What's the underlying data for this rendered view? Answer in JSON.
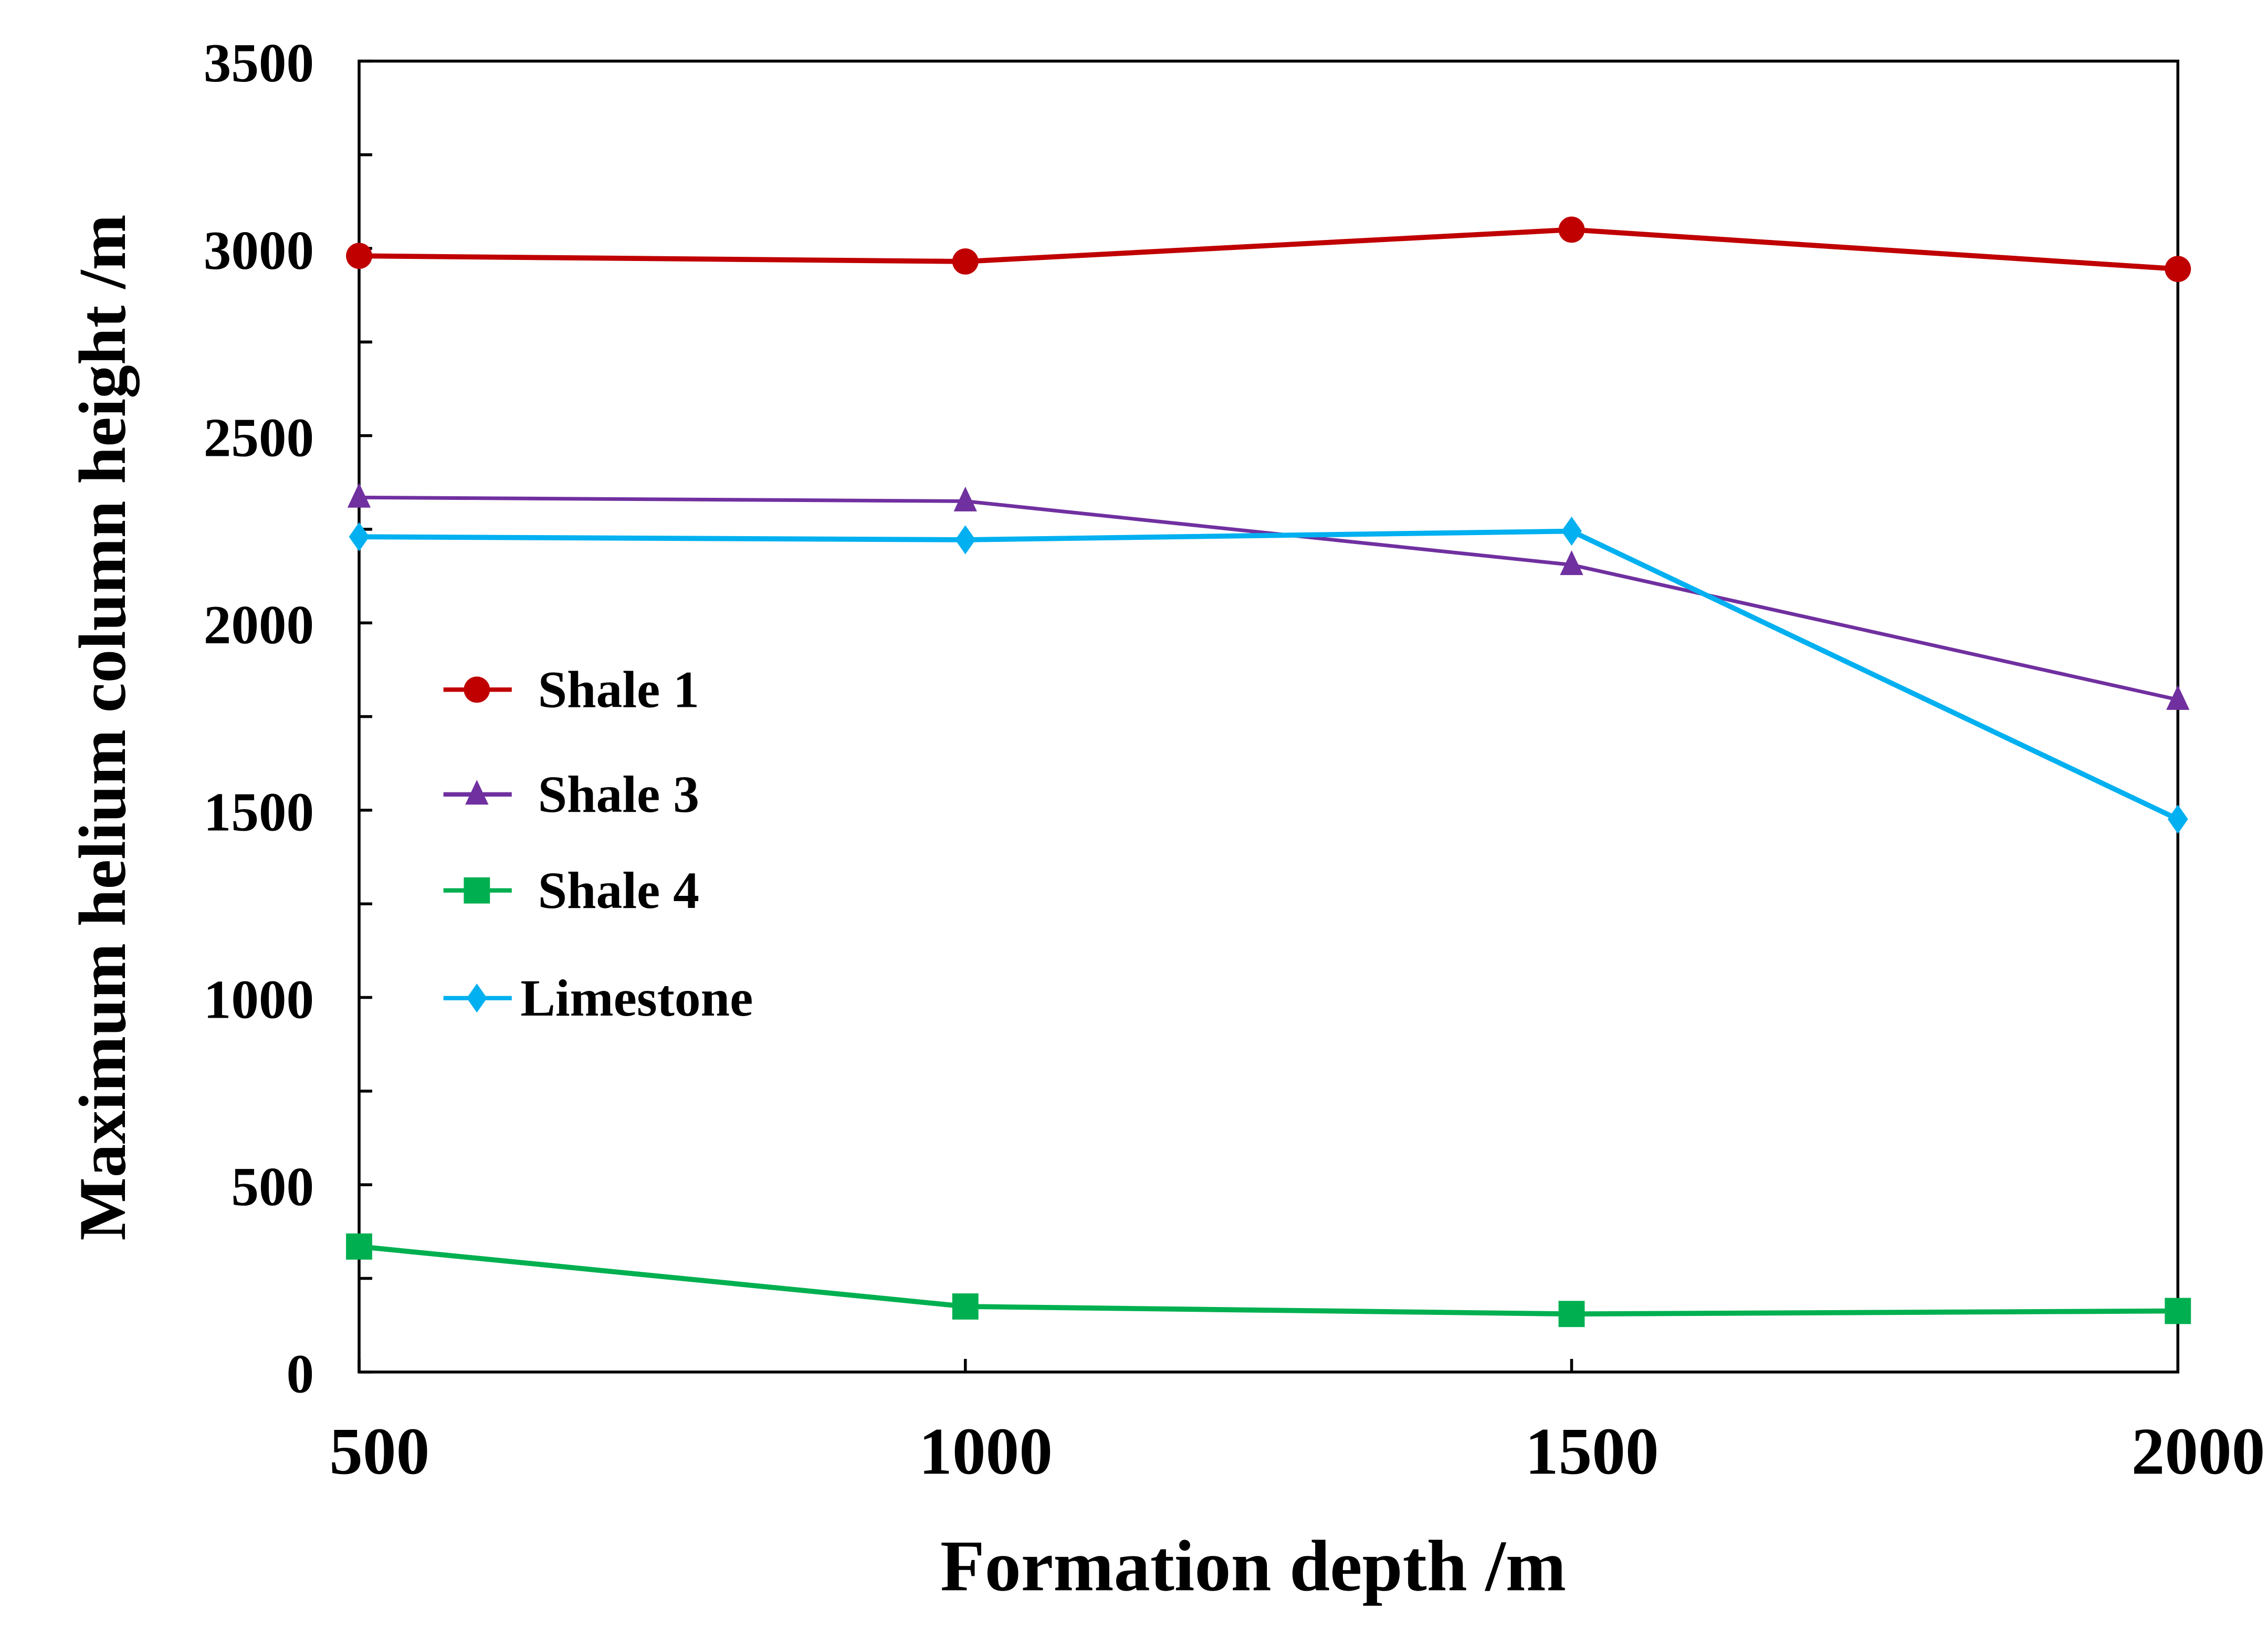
{
  "chart_data": {
    "type": "line",
    "title": "",
    "xlabel": "Formation depth  /m",
    "ylabel": "Maximum helium column height  /m",
    "x": [
      500,
      1000,
      1500,
      2000
    ],
    "xlim": [
      500,
      2000
    ],
    "ylim": [
      0,
      3500
    ],
    "xticks": [
      "500",
      "1000",
      "1500",
      "2000"
    ],
    "yticks": [
      "0",
      "500",
      "1000",
      "1500",
      "2000",
      "2500",
      "3000",
      "3500"
    ],
    "grid": false,
    "legend_position": "center-left",
    "series": [
      {
        "name": "Shale 1",
        "values": [
          2980,
          2965,
          3050,
          2945
        ],
        "color": "#c00000",
        "marker": "circle"
      },
      {
        "name": "Shale 3",
        "values": [
          2335,
          2325,
          2155,
          1795
        ],
        "color": "#7030a0",
        "marker": "triangle"
      },
      {
        "name": "Shale 4",
        "values": [
          335,
          175,
          155,
          163
        ],
        "color": "#00b050",
        "marker": "square"
      },
      {
        "name": "Limestone",
        "values": [
          2230,
          2222,
          2245,
          1476
        ],
        "color": "#00b0f0",
        "marker": "diamond"
      }
    ]
  }
}
